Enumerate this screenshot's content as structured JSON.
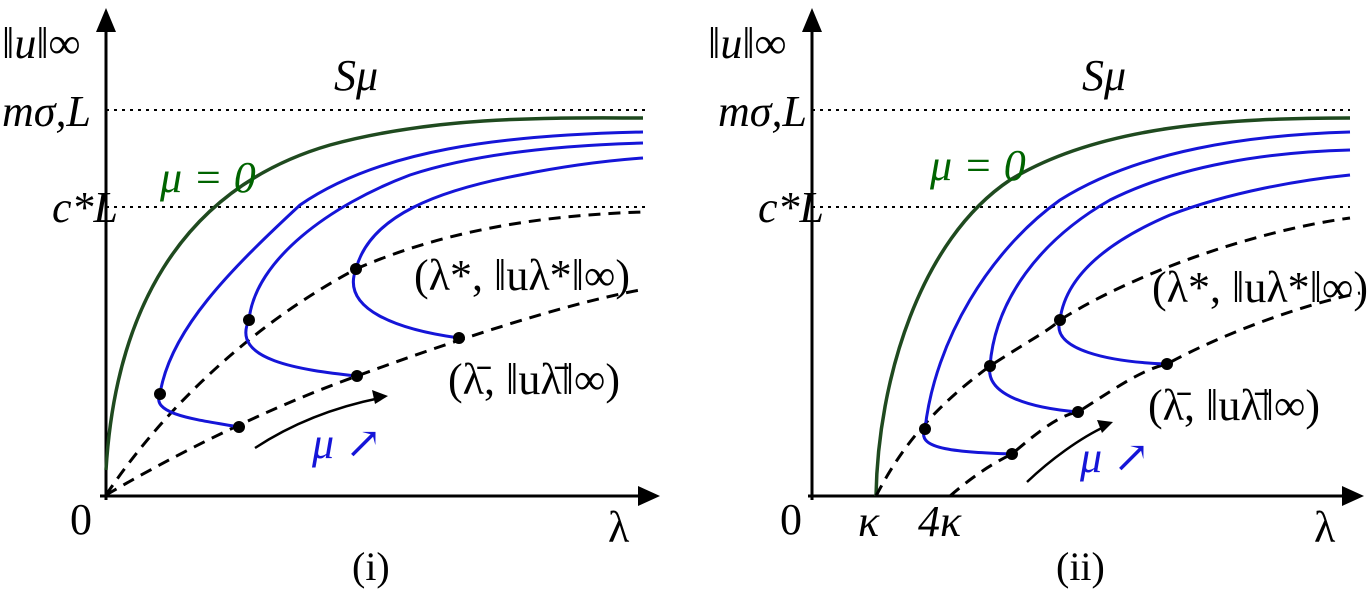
{
  "colors": {
    "axis": "#000000",
    "green_curve": "#1f4a1f",
    "blue_curve": "#1515d8",
    "green_label": "#006400",
    "blue_label": "#1515d8"
  },
  "panels": [
    {
      "caption": "(i)",
      "y_axis_label": "‖u‖∞",
      "x_axis_label": "λ",
      "origin_label": "0",
      "curve_family_label": "Sμ",
      "level_upper_label": "mσ,L",
      "level_lower_label": "c*L",
      "mu_zero_label": "μ = 0",
      "turning_point_label": "(λ*, ‖uλ*‖∞)",
      "endpoint_label": "(λ̄, ‖uλ̄‖∞)",
      "mu_arrow_label": "μ ↗",
      "x_ticks": []
    },
    {
      "caption": "(ii)",
      "y_axis_label": "‖u‖∞",
      "x_axis_label": "λ",
      "origin_label": "0",
      "curve_family_label": "Sμ",
      "level_upper_label": "mσ,L",
      "level_lower_label": "c*L",
      "mu_zero_label": "μ = 0",
      "turning_point_label": "(λ*, ‖uλ*‖∞)",
      "endpoint_label": "(λ̄, ‖uλ̄‖∞)",
      "mu_arrow_label": "μ ↗",
      "x_ticks": [
        "κ",
        "4κ"
      ]
    }
  ]
}
